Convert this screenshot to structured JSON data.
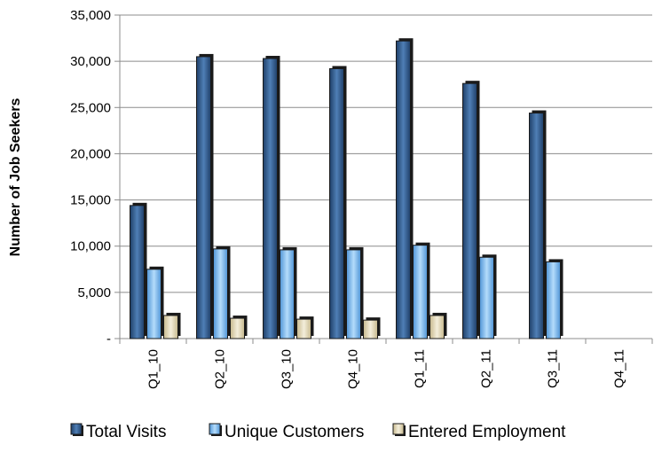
{
  "chart_data": {
    "type": "bar",
    "title": "",
    "xlabel": "",
    "ylabel": "Number of Job Seekers",
    "ylim": [
      0,
      35000
    ],
    "yticks": [
      0,
      5000,
      10000,
      15000,
      20000,
      25000,
      30000,
      35000
    ],
    "ytick_labels": [
      "-",
      "5,000",
      "10,000",
      "15,000",
      "20,000",
      "25,000",
      "30,000",
      "35,000"
    ],
    "categories": [
      "Q1_10",
      "Q2_10",
      "Q3_10",
      "Q4_10",
      "Q1_11",
      "Q2_11",
      "Q3_11",
      "Q4_11"
    ],
    "series": [
      {
        "name": "Total Visits",
        "color": "#2f5a8e",
        "values": [
          14400,
          30500,
          30300,
          29200,
          32200,
          27600,
          24400,
          null
        ]
      },
      {
        "name": "Unique Customers",
        "color": "#79b6ec",
        "values": [
          7500,
          9700,
          9600,
          9600,
          10100,
          8800,
          8300,
          null
        ]
      },
      {
        "name": "Entered Employment",
        "color": "#ddd3b3",
        "values": [
          2500,
          2200,
          2100,
          2000,
          2500,
          null,
          null,
          null
        ]
      }
    ],
    "grid": true,
    "legend_position": "bottom"
  }
}
